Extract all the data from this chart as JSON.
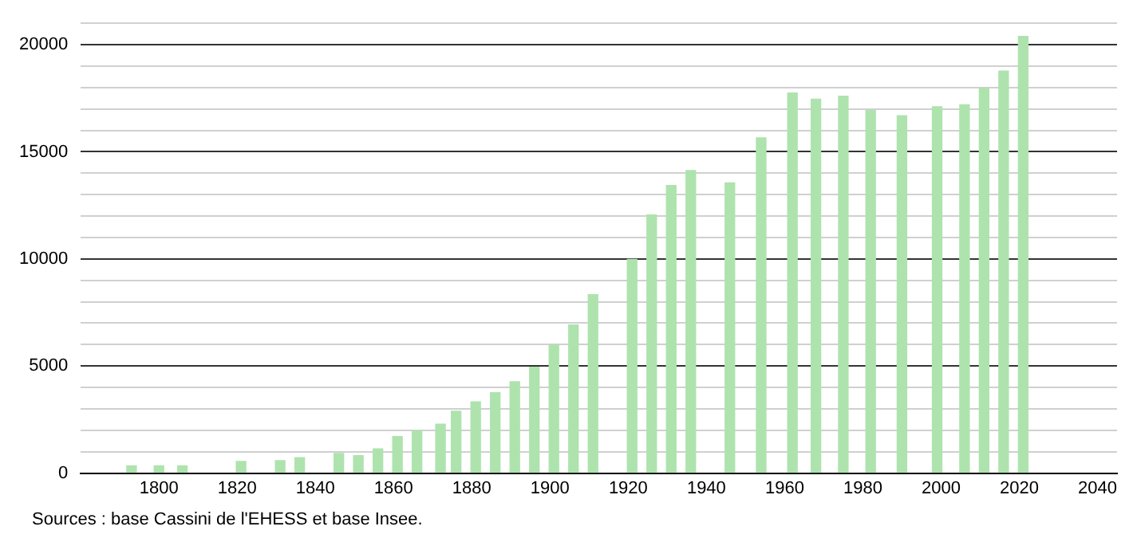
{
  "chart_data": {
    "type": "bar",
    "x": [
      1793,
      1800,
      1806,
      1821,
      1831,
      1836,
      1846,
      1851,
      1856,
      1861,
      1866,
      1872,
      1876,
      1881,
      1886,
      1891,
      1896,
      1901,
      1906,
      1911,
      1921,
      1926,
      1931,
      1936,
      1946,
      1954,
      1962,
      1968,
      1975,
      1982,
      1990,
      1999,
      2006,
      2011,
      2016,
      2021
    ],
    "values": [
      340,
      340,
      340,
      550,
      580,
      720,
      920,
      820,
      1130,
      1710,
      1980,
      2290,
      2890,
      3330,
      3760,
      4270,
      4950,
      5980,
      6920,
      8330,
      9980,
      12050,
      13430,
      14130,
      13550,
      15650,
      17750,
      17460,
      17600,
      16930,
      16690,
      17100,
      17200,
      17970,
      18770,
      20390
    ],
    "color": "#aee3ae",
    "xlim": [
      1780,
      2045
    ],
    "xticks": [
      1800,
      1820,
      1840,
      1860,
      1880,
      1900,
      1920,
      1940,
      1960,
      1980,
      2000,
      2020,
      2040
    ],
    "ylim": [
      0,
      21000
    ],
    "yticks": [
      0,
      {
        "value": 1000,
        "label": null
      },
      {
        "value": 2000,
        "label": null
      },
      {
        "value": 3000,
        "label": null
      },
      {
        "value": 4000,
        "label": null
      },
      5000,
      {
        "value": 6000,
        "label": null
      },
      {
        "value": 7000,
        "label": null
      },
      {
        "value": 8000,
        "label": null
      },
      {
        "value": 9000,
        "label": null
      },
      10000,
      {
        "value": 11000,
        "label": null
      },
      {
        "value": 12000,
        "label": null
      },
      {
        "value": 13000,
        "label": null
      },
      {
        "value": 14000,
        "label": null
      },
      15000,
      {
        "value": 16000,
        "label": null
      },
      {
        "value": 17000,
        "label": null
      },
      {
        "value": 18000,
        "label": null
      },
      {
        "value": 19000,
        "label": null
      },
      20000,
      {
        "value": 21000,
        "label": null
      }
    ],
    "grid": "y",
    "legend": false,
    "annotations": [
      "Sources : base Cassini de l'EHESS et base Insee."
    ]
  }
}
